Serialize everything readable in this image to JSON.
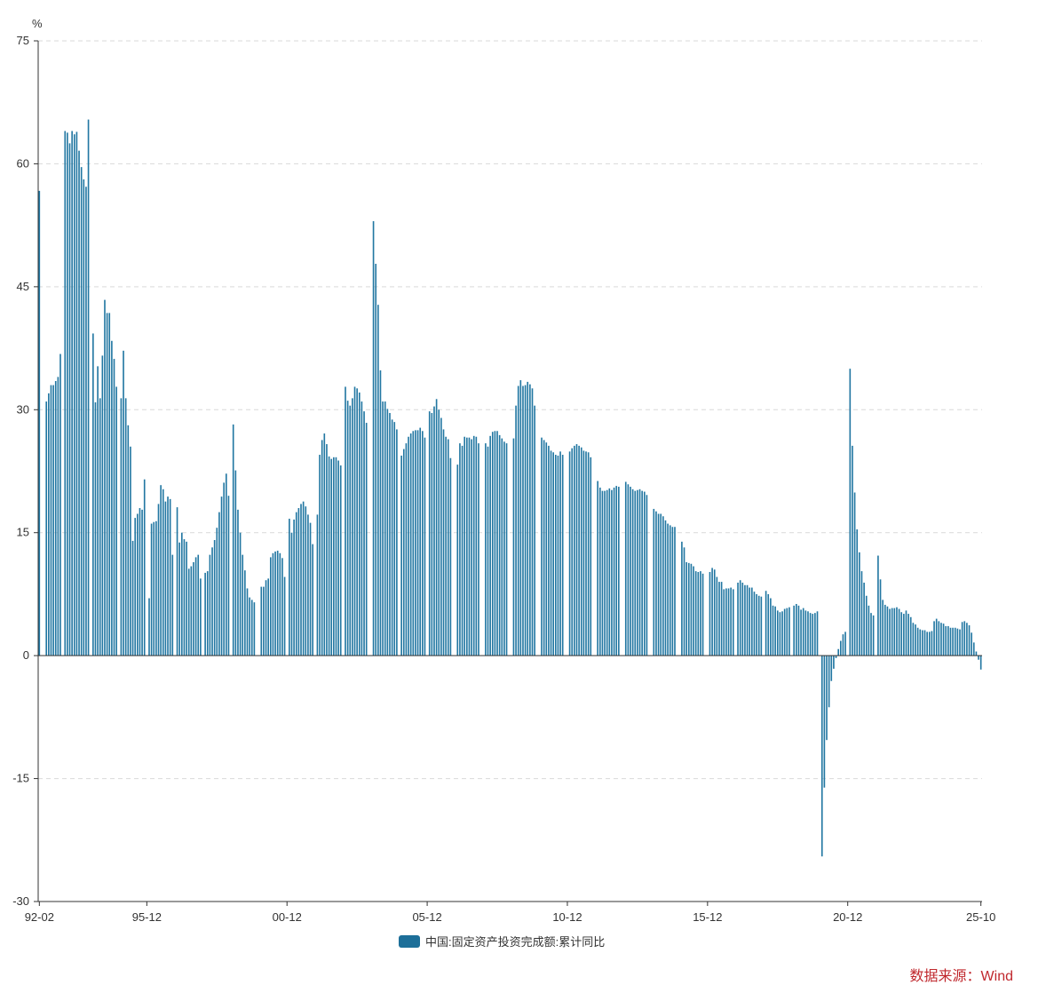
{
  "chart_data": {
    "type": "bar",
    "unit": "%",
    "ylim": [
      -30,
      75
    ],
    "yticks": [
      -30,
      -15,
      0,
      15,
      30,
      45,
      60,
      75
    ],
    "xtick_labels": [
      "92-02",
      "95-12",
      "00-12",
      "05-12",
      "10-12",
      "15-12",
      "20-12",
      "25-10"
    ],
    "grid": true,
    "legend_position": "bottom-center",
    "bar_color": "#2277a2",
    "series": [
      {
        "name": "中国:固定资产投资完成额:累计同比",
        "values": [
          56.7,
          0,
          0,
          31.0,
          32.0,
          33.0,
          33.0,
          33.5,
          34.0,
          36.8,
          0,
          64.0,
          63.8,
          62.5,
          64.0,
          63.6,
          63.9,
          61.6,
          59.6,
          58.1,
          57.2,
          65.4,
          0,
          39.3,
          30.9,
          35.3,
          31.4,
          36.6,
          43.4,
          41.8,
          41.8,
          38.4,
          36.2,
          32.8,
          0,
          31.4,
          37.2,
          31.4,
          28.1,
          25.5,
          14.0,
          16.8,
          17.3,
          18.0,
          17.8,
          21.5,
          0,
          7.0,
          16.1,
          16.3,
          16.4,
          18.5,
          20.8,
          20.3,
          18.8,
          19.4,
          19.1,
          12.3,
          0,
          18.1,
          13.8,
          15.0,
          14.2,
          13.9,
          10.6,
          10.9,
          11.4,
          12.0,
          12.3,
          9.4,
          0,
          10.1,
          10.3,
          12.3,
          13.2,
          14.1,
          15.6,
          17.5,
          19.4,
          21.1,
          22.2,
          19.5,
          0,
          28.2,
          22.6,
          17.8,
          15.0,
          12.3,
          10.4,
          8.2,
          7.1,
          6.8,
          6.5,
          0,
          0,
          8.4,
          8.4,
          9.2,
          9.4,
          12.0,
          12.5,
          12.7,
          12.8,
          12.5,
          11.9,
          9.6,
          0,
          16.7,
          15.0,
          16.6,
          17.5,
          18.0,
          18.5,
          18.8,
          18.2,
          17.2,
          16.2,
          13.6,
          0,
          17.2,
          24.5,
          26.3,
          27.1,
          25.8,
          24.3,
          24.0,
          24.2,
          24.2,
          23.8,
          23.2,
          0,
          32.8,
          31.1,
          30.5,
          31.4,
          32.8,
          32.6,
          32.1,
          31.0,
          29.8,
          28.4,
          0,
          0,
          53.0,
          47.8,
          42.8,
          34.8,
          31.0,
          31.0,
          30.1,
          29.6,
          28.8,
          28.5,
          27.6,
          0,
          24.4,
          25.2,
          25.9,
          26.7,
          27.1,
          27.4,
          27.5,
          27.5,
          27.8,
          27.4,
          26.6,
          0,
          29.8,
          29.6,
          30.4,
          31.3,
          30.0,
          29.0,
          27.6,
          26.7,
          26.4,
          24.1,
          0,
          0,
          23.3,
          25.9,
          25.6,
          26.7,
          26.6,
          26.6,
          26.4,
          26.8,
          26.7,
          25.9,
          0,
          0,
          25.9,
          25.5,
          26.8,
          27.3,
          27.4,
          27.4,
          26.9,
          26.5,
          26.1,
          25.9,
          0,
          0,
          26.5,
          30.5,
          32.9,
          33.6,
          32.9,
          33.0,
          33.4,
          33.1,
          32.6,
          30.5,
          0,
          0,
          26.6,
          26.3,
          26.0,
          25.6,
          25.0,
          24.8,
          24.5,
          24.4,
          24.9,
          24.5,
          0,
          0,
          24.9,
          25.3,
          25.6,
          25.8,
          25.6,
          25.4,
          25.0,
          24.9,
          24.8,
          24.2,
          0,
          0,
          21.3,
          20.5,
          20.1,
          20.1,
          20.2,
          20.4,
          20.2,
          20.5,
          20.7,
          20.6,
          0,
          0,
          21.2,
          20.9,
          20.6,
          20.3,
          20.1,
          20.2,
          20.3,
          20.1,
          20.0,
          19.6,
          0,
          0,
          17.9,
          17.6,
          17.3,
          17.3,
          17.0,
          16.5,
          16.1,
          15.9,
          15.7,
          15.7,
          0,
          0,
          13.9,
          13.2,
          11.4,
          11.3,
          11.2,
          10.9,
          10.3,
          10.2,
          10.3,
          10.0,
          0,
          0,
          10.2,
          10.7,
          10.5,
          9.6,
          9.0,
          9.0,
          8.1,
          8.2,
          8.2,
          8.3,
          8.1,
          0,
          8.9,
          9.2,
          8.9,
          8.6,
          8.6,
          8.3,
          8.3,
          7.8,
          7.5,
          7.3,
          7.2,
          0,
          7.9,
          7.5,
          7.0,
          6.1,
          6.0,
          5.5,
          5.3,
          5.4,
          5.7,
          5.8,
          5.9,
          0,
          6.1,
          6.3,
          6.1,
          5.6,
          5.8,
          5.5,
          5.4,
          5.2,
          5.1,
          5.2,
          5.4,
          0,
          -24.5,
          -16.1,
          -10.3,
          -6.3,
          -3.1,
          -1.6,
          -0.3,
          0.8,
          1.8,
          2.6,
          2.9,
          0,
          35.0,
          25.6,
          19.9,
          15.4,
          12.6,
          10.3,
          8.9,
          7.3,
          6.1,
          5.2,
          4.9,
          0,
          12.2,
          9.3,
          6.8,
          6.2,
          6.0,
          5.7,
          5.8,
          5.8,
          5.9,
          5.7,
          5.3,
          5.1,
          5.5,
          5.1,
          4.7,
          4.0,
          3.8,
          3.4,
          3.2,
          3.1,
          3.1,
          2.9,
          2.9,
          3.0,
          4.2,
          4.5,
          4.2,
          4.0,
          3.9,
          3.6,
          3.6,
          3.4,
          3.4,
          3.4,
          3.3,
          3.2,
          4.1,
          4.2,
          4.0,
          3.7,
          2.8,
          1.6,
          0.5,
          -0.5,
          -1.7
        ]
      }
    ]
  },
  "axis": {
    "y_unit_label": "%",
    "y_tick_labels": [
      "-30",
      "-15",
      "0",
      "15",
      "30",
      "45",
      "60",
      "75"
    ],
    "x_tick_labels": [
      "92-02",
      "95-12",
      "00-12",
      "05-12",
      "10-12",
      "15-12",
      "20-12",
      "25-10"
    ]
  },
  "legend": {
    "label": "中国:固定资产投资完成额:累计同比",
    "color": "#1d6f99"
  },
  "source": {
    "text": "数据来源：Wind",
    "color": "#c0282d"
  }
}
